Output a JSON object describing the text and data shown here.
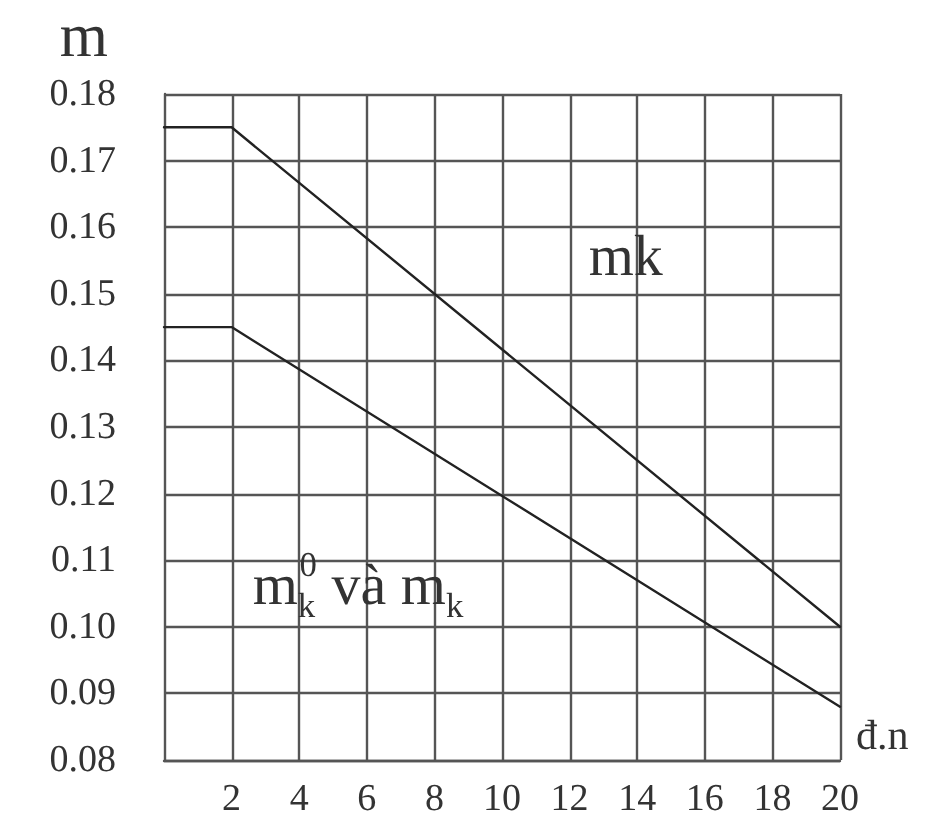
{
  "chart_data": {
    "type": "line",
    "xlabel": "đ.n",
    "ylabel": "m",
    "x": [
      0,
      2,
      20
    ],
    "series": [
      {
        "color": "#222222",
        "values": [
          0.175,
          0.175,
          0.1
        ]
      },
      {
        "color": "#222222",
        "values": [
          0.145,
          0.145,
          0.088
        ]
      }
    ],
    "xlim": [
      0,
      20
    ],
    "xticks": [
      2,
      4,
      6,
      8,
      10,
      12,
      14,
      16,
      18,
      20
    ],
    "ylim": [
      0.08,
      0.18
    ],
    "yticks": [
      0.08,
      0.09,
      {
        "value": 0.1,
        "label": "0.10"
      },
      0.11,
      0.12,
      0.13,
      0.14,
      0.15,
      0.16,
      0.17,
      0.18
    ],
    "grid": true,
    "marker": "none",
    "line_style": "solid",
    "annotations": [
      "mk",
      "m$_{k}$$^{0}$ và m$_{k}$"
    ]
  }
}
